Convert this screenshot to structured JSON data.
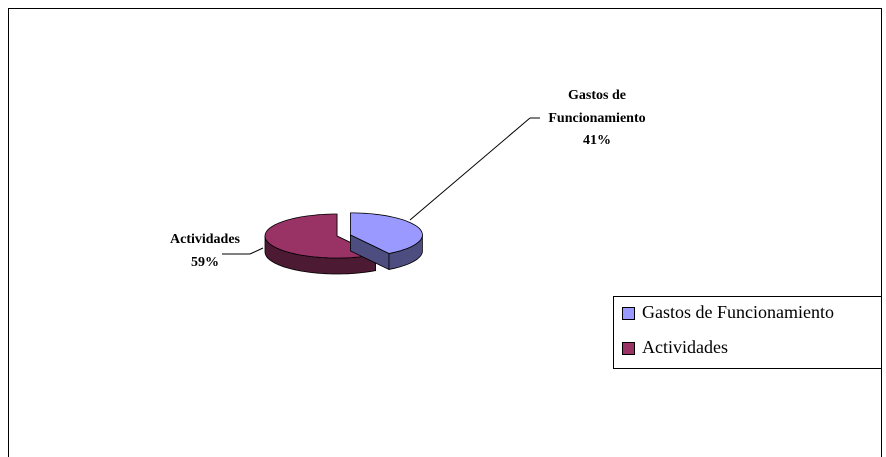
{
  "chart_data": {
    "type": "pie",
    "categories": [
      "Gastos de Funcionamiento",
      "Actividades"
    ],
    "values": [
      41,
      59
    ],
    "value_labels": [
      "41%",
      "59%"
    ],
    "colors": [
      "#9999ff",
      "#993366"
    ],
    "legend": "right"
  }
}
